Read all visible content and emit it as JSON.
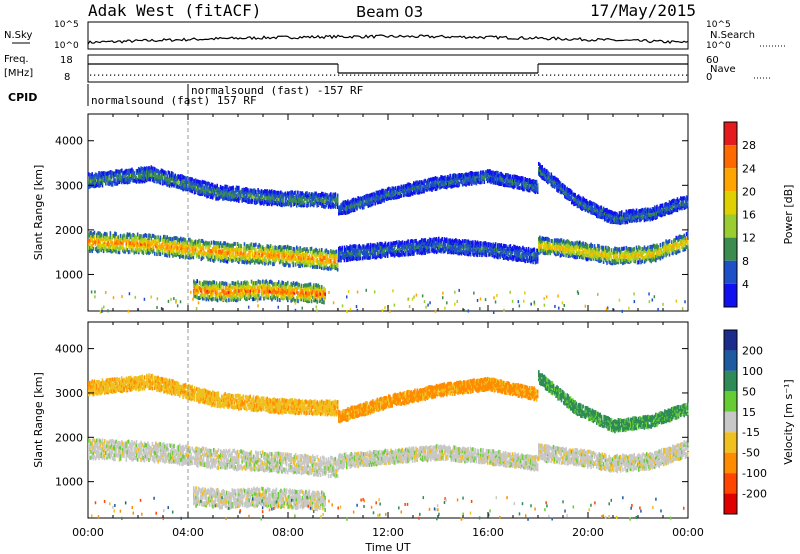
{
  "header": {
    "station": "Adak West (fitACF)",
    "beam": "Beam 03",
    "date": "17/May/2015"
  },
  "summary": {
    "nsky_label": "N.Sky",
    "nsky_ticks": [
      "10^5",
      "10^0"
    ],
    "nsearch_label": "N.Search",
    "nsearch_ticks": [
      "10^5",
      "10^0"
    ],
    "freq_label": "Freq.",
    "freq_unit": "[MHz]",
    "freq_ticks": [
      "18",
      "8"
    ],
    "nave_label": "Nave",
    "nave_ticks": [
      "60",
      "0"
    ],
    "cpid_label": "CPID",
    "cpid_segments": [
      {
        "label": "normalsound (fast) 157 RF",
        "start_hour": 0,
        "end_hour": 4
      },
      {
        "label": "normalsound (fast) -157 RF",
        "start_hour": 4,
        "end_hour": 24
      }
    ],
    "freq_trace": [
      {
        "hour_start": 0,
        "hour_end": 10,
        "level": "high"
      },
      {
        "hour_start": 10,
        "hour_end": 18,
        "level": "low"
      },
      {
        "hour_start": 18,
        "hour_end": 24,
        "level": "high"
      }
    ]
  },
  "chart_data": [
    {
      "type": "heatmap",
      "title": "Power",
      "ylabel": "Slant Range [km]",
      "xlabel": "Time UT",
      "xlim_hours": [
        0,
        24
      ],
      "ylim": [
        180,
        4600
      ],
      "xticks": [
        "00:00",
        "04:00",
        "08:00",
        "12:00",
        "16:00",
        "20:00",
        "00:00"
      ],
      "yticks": [
        1000,
        2000,
        3000,
        4000
      ],
      "colorbar_label": "Power [dB]",
      "colorbar_ticks": [
        28,
        24,
        20,
        16,
        12,
        8,
        4
      ],
      "colorbar_colors": [
        "#e41a1c",
        "#ff6a00",
        "#ffa500",
        "#e0d000",
        "#9acd32",
        "#3c8c50",
        "#1e50c8",
        "#1010f0"
      ],
      "bands": [
        {
          "name": "lower",
          "hour_start": 0,
          "hour_end": 10,
          "center_km": [
            1780,
            1720,
            1560,
            1480,
            1360
          ],
          "width_km": 420,
          "power_db": 24
        },
        {
          "name": "upper",
          "hour_start": 0,
          "hour_end": 10,
          "center_km": [
            3150,
            3300,
            2900,
            2750,
            2700
          ],
          "width_km": 300,
          "power_db": 10
        },
        {
          "name": "mid-day",
          "hour_start": 10,
          "hour_end": 18,
          "center_km": [
            1500,
            1600,
            1700,
            1600,
            1450
          ],
          "width_km": 300,
          "power_db": 8
        },
        {
          "name": "mid-day upper",
          "hour_start": 10,
          "hour_end": 18,
          "center_km": [
            2500,
            2850,
            3100,
            3250,
            3000
          ],
          "width_km": 250,
          "power_db": 8
        },
        {
          "name": "evening",
          "hour_start": 18,
          "hour_end": 24,
          "center_km": [
            1700,
            1600,
            1450,
            1500,
            1800
          ],
          "width_km": 350,
          "power_db": 20
        },
        {
          "name": "evening upper",
          "hour_start": 18,
          "hour_end": 24,
          "center_km": [
            3400,
            2700,
            2300,
            2400,
            2700
          ],
          "width_km": 250,
          "power_db": 8
        },
        {
          "name": "near-range patch",
          "hour_start": 4.2,
          "hour_end": 9.5,
          "center_km": [
            700,
            650,
            700,
            650,
            600
          ],
          "width_km": 400,
          "power_db": 26
        }
      ]
    },
    {
      "type": "heatmap",
      "title": "Velocity",
      "ylabel": "Slant Range [km]",
      "xlabel": "Time UT",
      "xlim_hours": [
        0,
        24
      ],
      "ylim": [
        180,
        4600
      ],
      "xticks": [
        "00:00",
        "04:00",
        "08:00",
        "12:00",
        "16:00",
        "20:00",
        "00:00"
      ],
      "yticks": [
        1000,
        2000,
        3000,
        4000
      ],
      "colorbar_label": "Velocity [m s⁻¹]",
      "colorbar_ticks": [
        200,
        100,
        50,
        15,
        -15,
        -50,
        -100,
        -200
      ],
      "colorbar_colors": [
        "#1a2d8c",
        "#1e5aa0",
        "#2e8b57",
        "#66cc33",
        "#c8c8c8",
        "#f0c020",
        "#ff8c00",
        "#ff4500",
        "#e00000"
      ],
      "bands": [
        {
          "name": "lower",
          "hour_start": 0,
          "hour_end": 10,
          "center_km": [
            1780,
            1720,
            1560,
            1480,
            1360
          ],
          "width_km": 420,
          "velocity": 0
        },
        {
          "name": "upper",
          "hour_start": 0,
          "hour_end": 10,
          "center_km": [
            3150,
            3300,
            2900,
            2750,
            2700
          ],
          "width_km": 300,
          "velocity": -40
        },
        {
          "name": "mid-day",
          "hour_start": 10,
          "hour_end": 18,
          "center_km": [
            1500,
            1600,
            1700,
            1600,
            1450
          ],
          "width_km": 300,
          "velocity": 0
        },
        {
          "name": "mid-day upper",
          "hour_start": 10,
          "hour_end": 18,
          "center_km": [
            2500,
            2850,
            3100,
            3250,
            3000
          ],
          "width_km": 250,
          "velocity": -60
        },
        {
          "name": "evening",
          "hour_start": 18,
          "hour_end": 24,
          "center_km": [
            1700,
            1600,
            1450,
            1500,
            1800
          ],
          "width_km": 350,
          "velocity": 0
        },
        {
          "name": "evening upper",
          "hour_start": 18,
          "hour_end": 24,
          "center_km": [
            3400,
            2700,
            2300,
            2400,
            2700
          ],
          "width_km": 250,
          "velocity": 60
        },
        {
          "name": "near-range patch",
          "hour_start": 4.2,
          "hour_end": 9.5,
          "center_km": [
            700,
            650,
            700,
            650,
            600
          ],
          "width_km": 400,
          "velocity": 0
        }
      ]
    }
  ]
}
